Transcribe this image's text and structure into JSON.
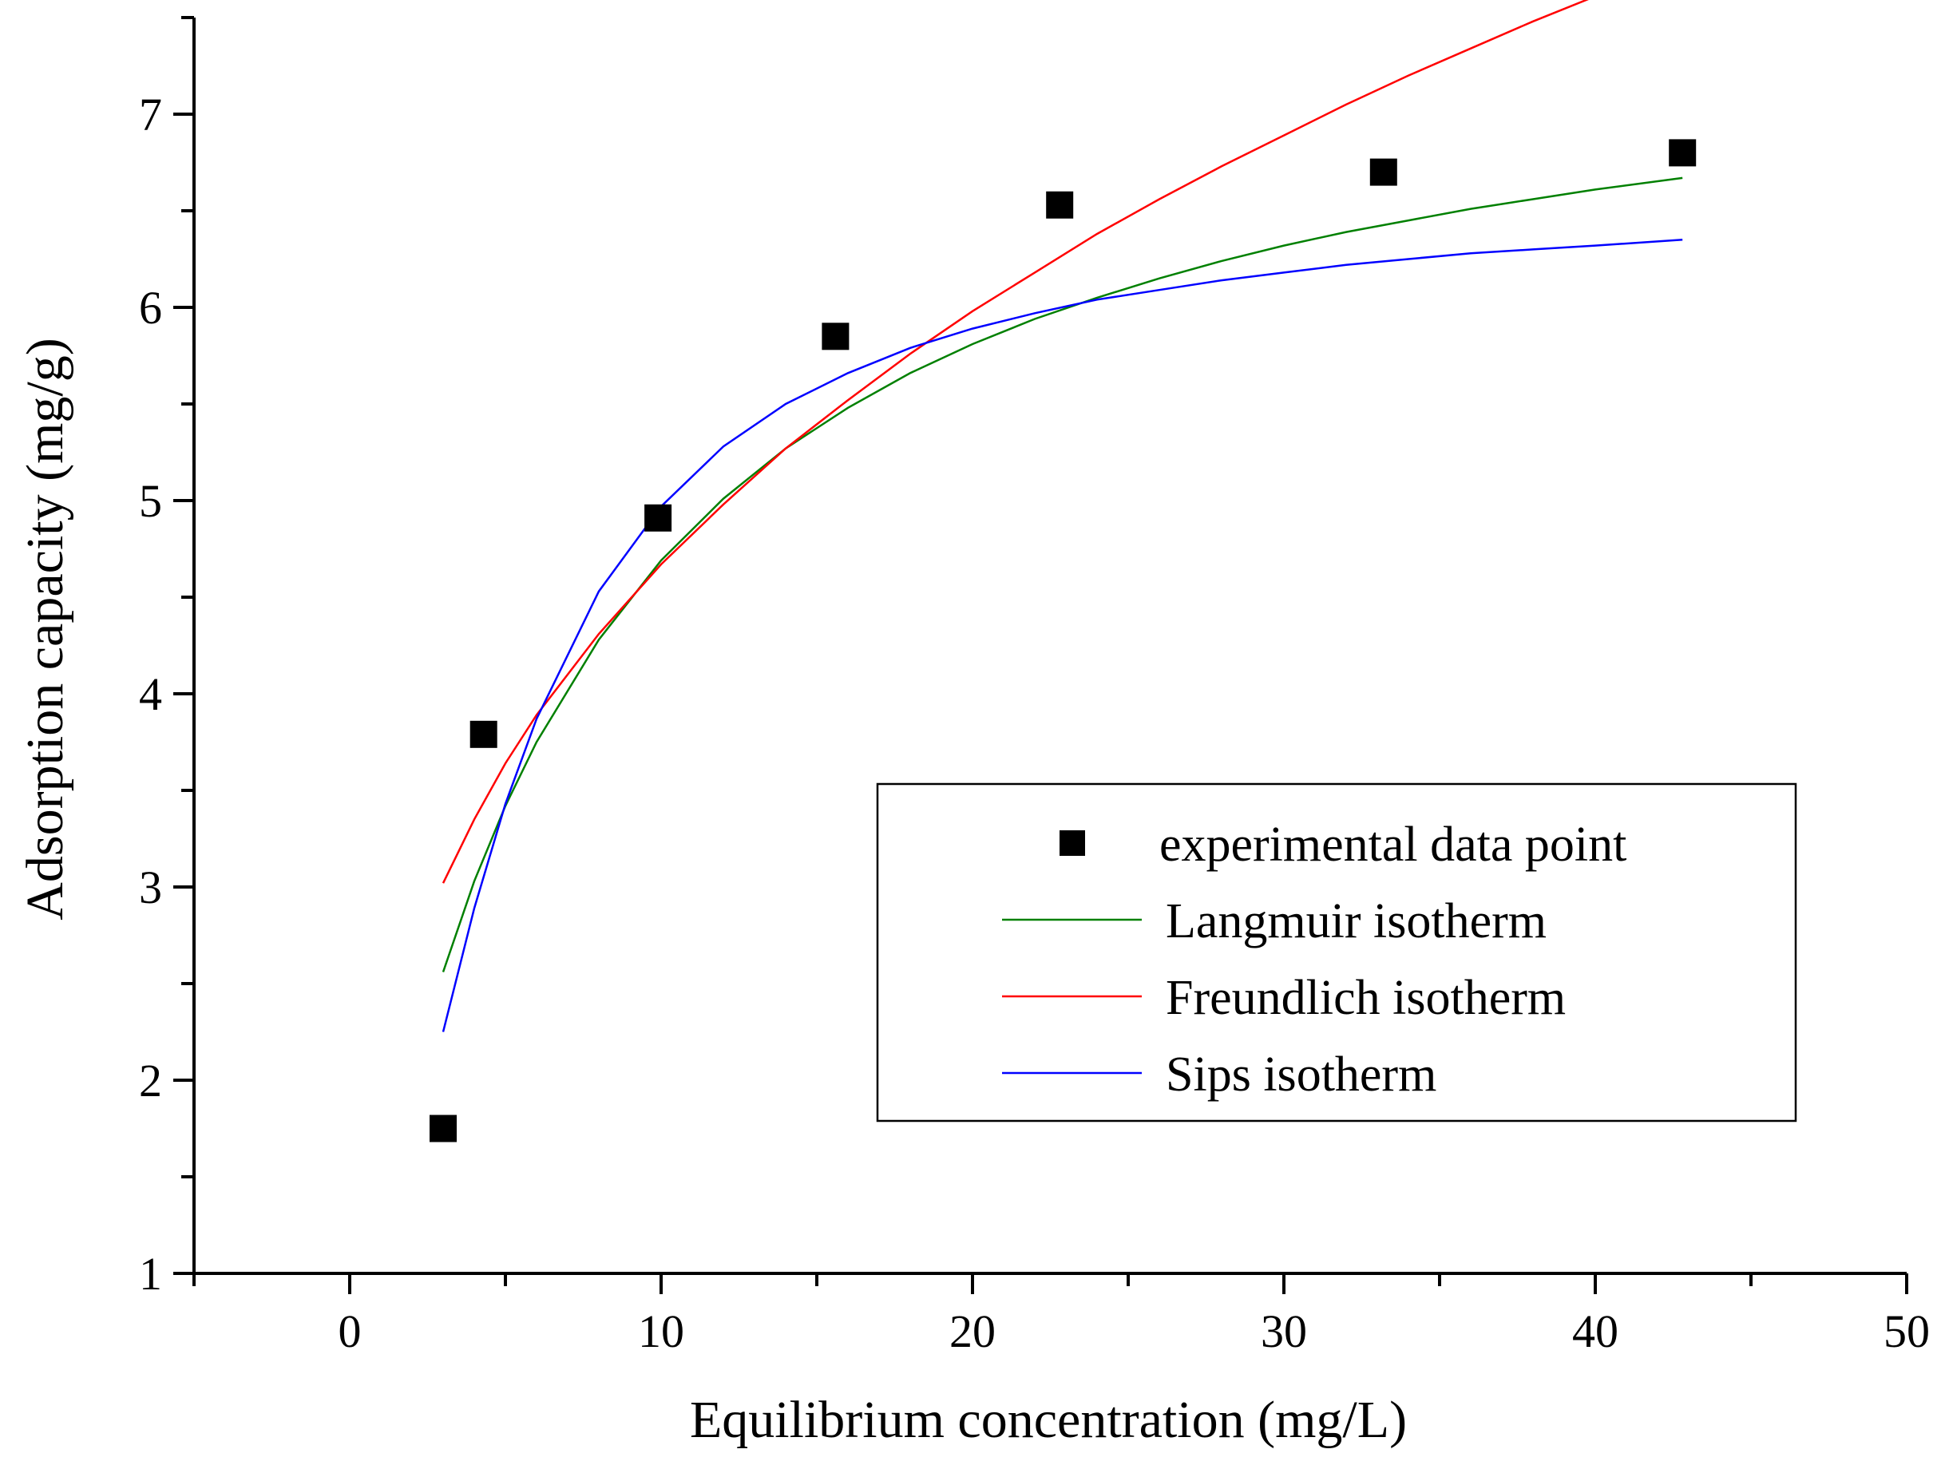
{
  "chart_data": {
    "type": "scatter",
    "title": "",
    "xlabel": "Equilibrium concentration (mg/L)",
    "ylabel": "Adsorption capacity (mg/g)",
    "xlim": [
      -5,
      50
    ],
    "ylim": [
      1,
      7.5
    ],
    "x_ticks": [
      0,
      10,
      20,
      30,
      40,
      50
    ],
    "y_ticks": [
      1,
      2,
      3,
      4,
      5,
      6,
      7
    ],
    "grid": false,
    "legend_position": "lower-right",
    "series": [
      {
        "name": "experimental data point",
        "kind": "markers",
        "marker": "square",
        "color": "#000000",
        "x": [
          3.0,
          4.3,
          9.9,
          15.6,
          22.8,
          33.2,
          42.8
        ],
        "y": [
          1.75,
          3.79,
          4.91,
          5.85,
          6.53,
          6.7,
          6.8
        ]
      },
      {
        "name": "Langmuir isotherm",
        "kind": "line",
        "color": "#008000",
        "x": [
          3,
          4,
          5,
          6,
          8,
          10,
          12,
          14,
          16,
          18,
          20,
          22,
          24,
          26,
          28,
          30,
          32,
          34,
          36,
          38,
          40,
          42.8
        ],
        "y": [
          2.56,
          3.03,
          3.42,
          3.75,
          4.28,
          4.69,
          5.01,
          5.27,
          5.48,
          5.66,
          5.81,
          5.94,
          6.05,
          6.15,
          6.24,
          6.32,
          6.39,
          6.45,
          6.51,
          6.56,
          6.61,
          6.67
        ]
      },
      {
        "name": "Freundlich isotherm",
        "kind": "line",
        "color": "#ff0000",
        "x": [
          3,
          4,
          5,
          6,
          8,
          10,
          12,
          14,
          16,
          18,
          20,
          22,
          24,
          26,
          28,
          30,
          32,
          34,
          36,
          38,
          40,
          42.8
        ],
        "y": [
          3.02,
          3.35,
          3.64,
          3.89,
          4.31,
          4.67,
          4.98,
          5.27,
          5.52,
          5.76,
          5.98,
          6.18,
          6.38,
          6.56,
          6.73,
          6.89,
          7.05,
          7.2,
          7.34,
          7.48,
          7.61,
          7.79
        ]
      },
      {
        "name": "Sips isotherm",
        "kind": "line",
        "color": "#0000ff",
        "x": [
          3,
          4,
          5,
          6,
          8,
          10,
          12,
          14,
          16,
          18,
          20,
          22,
          24,
          26,
          28,
          30,
          32,
          34,
          36,
          38,
          40,
          42.8
        ],
        "y": [
          2.25,
          2.89,
          3.43,
          3.87,
          4.53,
          4.97,
          5.28,
          5.5,
          5.66,
          5.79,
          5.89,
          5.97,
          6.04,
          6.09,
          6.14,
          6.18,
          6.22,
          6.25,
          6.28,
          6.3,
          6.32,
          6.35
        ]
      }
    ]
  }
}
